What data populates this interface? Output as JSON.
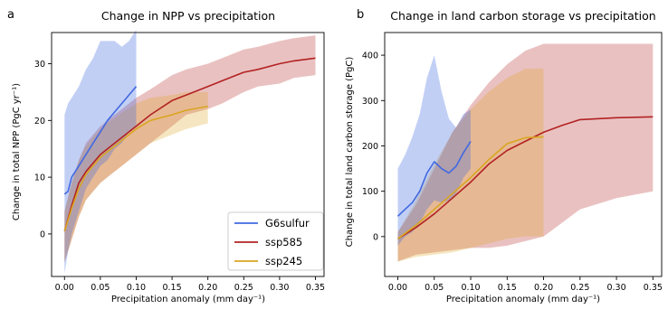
{
  "colors": {
    "G6sulfur": "#4169e1",
    "ssp585": "#b22222",
    "ssp245": "#daa520"
  },
  "chart_data": [
    {
      "panel_label": "a",
      "type": "line",
      "title": "Change in NPP vs precipitation",
      "xlabel": "Precipitation anomaly (mm day⁻¹)",
      "ylabel": "Change in total NPP (PgC yr⁻¹)",
      "xlim": [
        -0.018,
        0.362
      ],
      "ylim": [
        -7.5,
        35.5
      ],
      "xticks": [
        0.0,
        0.05,
        0.1,
        0.15,
        0.2,
        0.25,
        0.3,
        0.35
      ],
      "xtick_labels": [
        "0.00",
        "0.05",
        "0.10",
        "0.15",
        "0.20",
        "0.25",
        "0.30",
        "0.35"
      ],
      "yticks": [
        0,
        10,
        20,
        30
      ],
      "ytick_labels": [
        "0",
        "10",
        "20",
        "30"
      ],
      "grid": false,
      "legend": {
        "position": "bottom-right",
        "entries": [
          "G6sulfur",
          "ssp585",
          "ssp245"
        ]
      },
      "series": [
        {
          "name": "G6sulfur",
          "x": [
            0.0,
            0.005,
            0.01,
            0.02,
            0.03,
            0.04,
            0.05,
            0.06,
            0.07,
            0.08,
            0.09,
            0.1
          ],
          "y": [
            7,
            7.5,
            10,
            12,
            14,
            16,
            18,
            20,
            21.5,
            23,
            24.5,
            26
          ],
          "lower": [
            -7,
            -3,
            0,
            4,
            8,
            10,
            12,
            13,
            15,
            16,
            18,
            19
          ],
          "upper": [
            21,
            23,
            24,
            26,
            29,
            31,
            34,
            34,
            34,
            33,
            34,
            36
          ]
        },
        {
          "name": "ssp585",
          "x": [
            0.0,
            0.01,
            0.02,
            0.03,
            0.05,
            0.07,
            0.1,
            0.12,
            0.15,
            0.17,
            0.2,
            0.22,
            0.25,
            0.27,
            0.3,
            0.32,
            0.35
          ],
          "y": [
            0.5,
            5,
            9,
            11,
            14,
            16,
            19,
            21,
            23.5,
            24.5,
            26,
            27,
            28.5,
            29,
            30,
            30.5,
            31
          ],
          "lower": [
            -5,
            -1,
            3,
            6,
            9,
            11,
            14,
            16,
            19,
            21,
            22,
            23,
            25,
            26,
            26.5,
            27.5,
            28
          ],
          "upper": [
            4,
            9,
            13,
            16,
            19,
            21,
            24,
            25.5,
            28,
            29,
            30,
            31,
            32.5,
            33,
            34,
            34.5,
            35
          ]
        },
        {
          "name": "ssp245",
          "x": [
            0.0,
            0.01,
            0.02,
            0.03,
            0.05,
            0.07,
            0.1,
            0.12,
            0.15,
            0.17,
            0.2
          ],
          "y": [
            0.5,
            4.5,
            8,
            10.5,
            13.5,
            15.5,
            18.5,
            20,
            21,
            21.8,
            22.5
          ],
          "lower": [
            -5,
            -1,
            3,
            6,
            9,
            11,
            14,
            16,
            17.5,
            18.5,
            19.5
          ],
          "upper": [
            4,
            9,
            13,
            15.5,
            18.5,
            20.5,
            23,
            24,
            24.5,
            25,
            25
          ]
        }
      ]
    },
    {
      "panel_label": "b",
      "type": "line",
      "title": "Change in land carbon storage vs precipitation",
      "xlabel": "Precipitation anomaly (mm day⁻¹)",
      "ylabel": "Change in total land carbon storage (PgC)",
      "xlim": [
        -0.018,
        0.362
      ],
      "ylim": [
        -88,
        450
      ],
      "xticks": [
        0.0,
        0.05,
        0.1,
        0.15,
        0.2,
        0.25,
        0.3,
        0.35
      ],
      "xtick_labels": [
        "0.00",
        "0.05",
        "0.10",
        "0.15",
        "0.20",
        "0.25",
        "0.30",
        "0.35"
      ],
      "yticks": [
        0,
        100,
        200,
        300,
        400
      ],
      "ytick_labels": [
        "0",
        "100",
        "200",
        "300",
        "400"
      ],
      "grid": false,
      "series": [
        {
          "name": "G6sulfur",
          "x": [
            0.0,
            0.01,
            0.02,
            0.03,
            0.04,
            0.05,
            0.06,
            0.07,
            0.08,
            0.09,
            0.1
          ],
          "y": [
            45,
            60,
            75,
            100,
            140,
            165,
            150,
            140,
            155,
            185,
            210
          ],
          "lower": [
            -20,
            0,
            10,
            30,
            60,
            80,
            75,
            80,
            95,
            130,
            150
          ],
          "upper": [
            150,
            180,
            220,
            270,
            350,
            400,
            320,
            260,
            240,
            270,
            280
          ]
        },
        {
          "name": "ssp585",
          "x": [
            0.0,
            0.025,
            0.05,
            0.075,
            0.1,
            0.125,
            0.15,
            0.175,
            0.2,
            0.225,
            0.25,
            0.3,
            0.35
          ],
          "y": [
            -5,
            20,
            50,
            85,
            120,
            160,
            190,
            210,
            230,
            245,
            258,
            262,
            264
          ],
          "lower": [
            -55,
            -40,
            -35,
            -30,
            -25,
            -25,
            -20,
            -10,
            0,
            30,
            60,
            85,
            100
          ],
          "upper": [
            10,
            70,
            150,
            230,
            290,
            340,
            380,
            410,
            425,
            425,
            425,
            425,
            425
          ]
        },
        {
          "name": "ssp245",
          "x": [
            0.0,
            0.025,
            0.05,
            0.075,
            0.1,
            0.125,
            0.15,
            0.175,
            0.2
          ],
          "y": [
            -5,
            25,
            60,
            95,
            130,
            170,
            205,
            218,
            220
          ],
          "lower": [
            -55,
            -45,
            -40,
            -35,
            -25,
            -15,
            -5,
            0,
            0
          ],
          "upper": [
            10,
            80,
            160,
            230,
            280,
            320,
            350,
            370,
            370
          ]
        }
      ]
    }
  ]
}
